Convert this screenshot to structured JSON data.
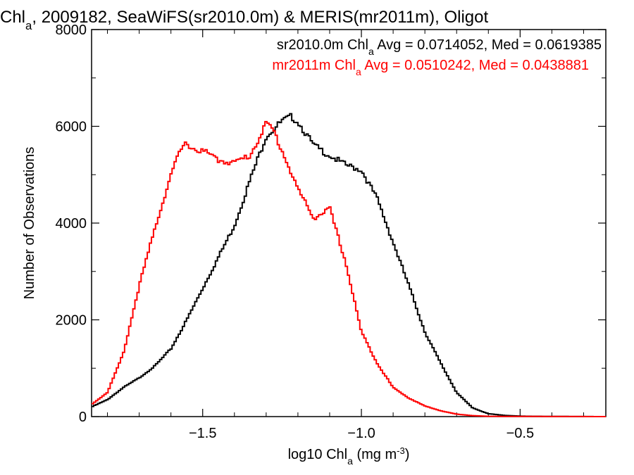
{
  "chart_data": {
    "type": "line",
    "title_parts": [
      "Chl",
      "a",
      ", 2009182, SeaWiFS(sr2010.0m) & MERIS(mr2011m), Oligot"
    ],
    "xlabel_parts": [
      "log10 Chl",
      "a",
      " (mg m",
      "-3",
      ")"
    ],
    "ylabel": "Number of Observations",
    "xlim": [
      -1.85,
      -0.23
    ],
    "ylim": [
      0,
      8000
    ],
    "xticks": [
      -1.5,
      -1.0,
      -0.5
    ],
    "xtick_labels": [
      "−1.5",
      "−1.0",
      "−0.5"
    ],
    "yticks": [
      0,
      2000,
      4000,
      6000,
      8000
    ],
    "ytick_labels": [
      "0",
      "2000",
      "4000",
      "6000",
      "8000"
    ],
    "bin_width": 0.0065,
    "series": [
      {
        "name": "sr2010.0m",
        "color": "#000000",
        "legend_parts": [
          "sr2010.0m Chl",
          "a",
          " Avg = 0.0714052, Med = 0.0619385"
        ],
        "points": [
          [
            -1.85,
            200
          ],
          [
            -1.8,
            350
          ],
          [
            -1.75,
            600
          ],
          [
            -1.7,
            800
          ],
          [
            -1.65,
            1050
          ],
          [
            -1.6,
            1400
          ],
          [
            -1.55,
            2000
          ],
          [
            -1.5,
            2650
          ],
          [
            -1.45,
            3300
          ],
          [
            -1.4,
            3950
          ],
          [
            -1.35,
            4900
          ],
          [
            -1.3,
            5800
          ],
          [
            -1.25,
            6100
          ],
          [
            -1.22,
            6200
          ],
          [
            -1.2,
            6100
          ],
          [
            -1.15,
            5600
          ],
          [
            -1.1,
            5400
          ],
          [
            -1.05,
            5200
          ],
          [
            -1.0,
            5100
          ],
          [
            -0.95,
            4500
          ],
          [
            -0.9,
            3600
          ],
          [
            -0.85,
            2700
          ],
          [
            -0.8,
            1750
          ],
          [
            -0.75,
            1100
          ],
          [
            -0.7,
            500
          ],
          [
            -0.65,
            180
          ],
          [
            -0.6,
            60
          ],
          [
            -0.55,
            25
          ],
          [
            -0.5,
            10
          ],
          [
            -0.45,
            5
          ],
          [
            -0.23,
            0
          ]
        ]
      },
      {
        "name": "mr2011m",
        "color": "#ff0000",
        "legend_parts": [
          "mr2011m Chl",
          "a",
          " Avg = 0.0510242, Med = 0.0438881"
        ],
        "points": [
          [
            -1.85,
            250
          ],
          [
            -1.8,
            500
          ],
          [
            -1.75,
            1300
          ],
          [
            -1.7,
            2700
          ],
          [
            -1.65,
            3900
          ],
          [
            -1.6,
            5000
          ],
          [
            -1.57,
            5500
          ],
          [
            -1.55,
            5650
          ],
          [
            -1.52,
            5500
          ],
          [
            -1.5,
            5500
          ],
          [
            -1.45,
            5300
          ],
          [
            -1.4,
            5250
          ],
          [
            -1.35,
            5400
          ],
          [
            -1.32,
            5800
          ],
          [
            -1.3,
            6050
          ],
          [
            -1.28,
            5950
          ],
          [
            -1.25,
            5500
          ],
          [
            -1.2,
            4700
          ],
          [
            -1.15,
            4100
          ],
          [
            -1.1,
            4300
          ],
          [
            -1.05,
            3200
          ],
          [
            -1.0,
            1750
          ],
          [
            -0.95,
            1100
          ],
          [
            -0.9,
            600
          ],
          [
            -0.85,
            380
          ],
          [
            -0.8,
            220
          ],
          [
            -0.75,
            120
          ],
          [
            -0.7,
            50
          ],
          [
            -0.65,
            20
          ],
          [
            -0.6,
            5
          ],
          [
            -0.23,
            0
          ]
        ]
      }
    ]
  }
}
